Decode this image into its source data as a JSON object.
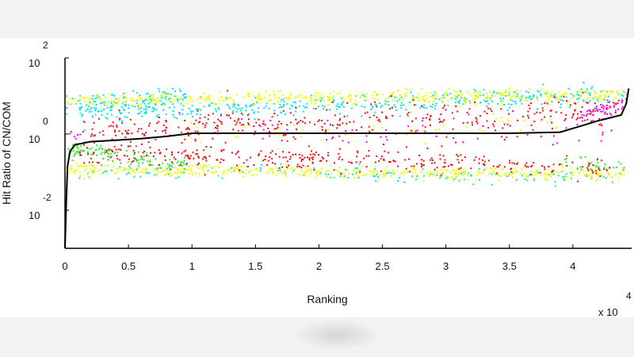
{
  "chart_data": {
    "type": "scatter",
    "title": "",
    "xlabel": "Ranking",
    "ylabel": "Hit Ratio of CN/COM",
    "x_multiplier": {
      "base": "x 10",
      "exponent": "4"
    },
    "x_range": [
      0,
      4.45
    ],
    "y_scale": "log",
    "y_range_log10": [
      -3,
      2
    ],
    "x_ticks": [
      {
        "value": 0,
        "label": "0"
      },
      {
        "value": 0.5,
        "label": "0.5"
      },
      {
        "value": 1,
        "label": "1"
      },
      {
        "value": 1.5,
        "label": "1.5"
      },
      {
        "value": 2,
        "label": "2"
      },
      {
        "value": 2.5,
        "label": "2.5"
      },
      {
        "value": 3,
        "label": "3"
      },
      {
        "value": 3.5,
        "label": "3.5"
      },
      {
        "value": 4,
        "label": "4"
      }
    ],
    "y_ticks": [
      {
        "value": 2,
        "base": "10",
        "exponent": "2"
      },
      {
        "value": 0,
        "base": "10",
        "exponent": "0"
      },
      {
        "value": -2,
        "base": "10",
        "exponent": "-2"
      }
    ],
    "grid": false,
    "legend": "none",
    "series": [
      {
        "color": "#00e5ee",
        "bands": [
          [
            0.0,
            0.95,
            0.75,
            1.05,
            0.25,
            0.9
          ],
          [
            0.1,
            4.4,
            0.55,
            1.05,
            0.25,
            0.7
          ],
          [
            0.1,
            4.4,
            -0.95,
            -1.1,
            0.2,
            0.25
          ]
        ]
      },
      {
        "color": "#f0ff00",
        "bands": [
          [
            0.0,
            4.4,
            0.9,
            1.05,
            0.18,
            0.8
          ],
          [
            0.0,
            4.4,
            -0.9,
            -1.05,
            0.15,
            0.8
          ],
          [
            0.9,
            3.9,
            0.0,
            0.2,
            0.35,
            0.15
          ]
        ]
      },
      {
        "color": "#33ee33",
        "bands": [
          [
            0.02,
            0.95,
            -0.35,
            -0.85,
            0.25,
            0.95
          ],
          [
            3.9,
            4.4,
            -0.7,
            -0.9,
            0.2,
            0.5
          ]
        ]
      },
      {
        "color": "#ee1111",
        "bands": [
          [
            0.1,
            4.4,
            0.05,
            0.65,
            0.4,
            0.55
          ],
          [
            0.1,
            4.3,
            -0.45,
            -0.85,
            0.3,
            0.55
          ],
          [
            0.2,
            4.3,
            0.0,
            0.0,
            1.1,
            0.08
          ]
        ]
      },
      {
        "color": "#ff00ff",
        "bands": [
          [
            0.02,
            0.12,
            -0.05,
            0.05,
            0.12,
            0.4
          ],
          [
            4.05,
            4.42,
            0.45,
            0.9,
            0.15,
            0.9
          ],
          [
            0.2,
            4.3,
            0.0,
            0.2,
            0.45,
            0.12
          ]
        ]
      }
    ],
    "sorted_curve": {
      "color": "#000000",
      "x": [
        0.0,
        0.01,
        0.02,
        0.04,
        0.08,
        0.2,
        0.4,
        0.6,
        0.8,
        0.95,
        1.0,
        1.5,
        2.0,
        2.5,
        3.0,
        3.5,
        3.9,
        4.05,
        4.2,
        4.38,
        4.42,
        4.44
      ],
      "log10_y": [
        -3.0,
        -1.8,
        -0.85,
        -0.45,
        -0.28,
        -0.2,
        -0.16,
        -0.12,
        -0.06,
        0.0,
        0.02,
        0.02,
        0.02,
        0.02,
        0.02,
        0.02,
        0.05,
        0.2,
        0.35,
        0.5,
        0.8,
        1.2
      ]
    }
  }
}
